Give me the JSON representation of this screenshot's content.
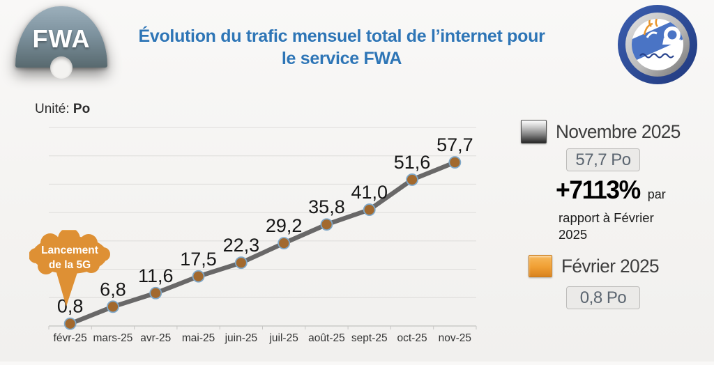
{
  "header": {
    "logo_text": "FWA",
    "title_line1": "Évolution du trafic mensuel total de l’internet pour",
    "title_line2": "le service FWA"
  },
  "unit": {
    "label": "Unité:",
    "value": "Po"
  },
  "chart_data": {
    "type": "line",
    "title": "Évolution du trafic mensuel total de l’internet pour le service FWA",
    "unit": "Po",
    "categories": [
      "févr-25",
      "mars-25",
      "avr-25",
      "mai-25",
      "juin-25",
      "juil-25",
      "août-25",
      "sept-25",
      "oct-25",
      "nov-25"
    ],
    "values": [
      0.8,
      6.8,
      11.6,
      17.5,
      22.3,
      29.2,
      35.8,
      41.0,
      51.6,
      57.7
    ],
    "point_labels": [
      "0,8",
      "6,8",
      "11,6",
      "17,5",
      "22,3",
      "29,2",
      "35,8",
      "41,0",
      "51,6",
      "57,7"
    ],
    "xlabel": "",
    "ylabel": "",
    "ylim": [
      0,
      70
    ],
    "ytick_step": 10,
    "grid": true,
    "legend_position": "right",
    "line_color": "#696868",
    "marker_color": "#a2692e",
    "marker_edge_color": "#7fa8c9"
  },
  "annotation": {
    "line1": "Lancement",
    "line2": "de la 5G"
  },
  "panel": {
    "nov_label": "Novembre 2025",
    "nov_value": "57,7 Po",
    "pct_value": "+7113%",
    "pct_suffix": "par",
    "pct_desc_line1": "rapport à Février",
    "pct_desc_line2": "2025",
    "fev_label": "Février 2025",
    "fev_value": "0,8 Po",
    "gray_swatch_color": "#6e6e6e",
    "orange_swatch_color": "#f0a030"
  }
}
